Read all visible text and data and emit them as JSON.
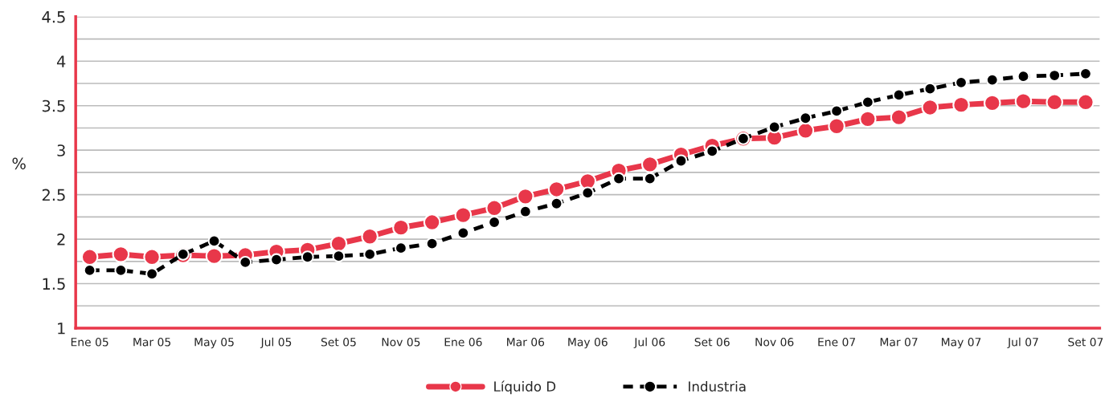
{
  "chart_data": {
    "type": "line",
    "ylabel": "%",
    "categories": [
      "Ene 05",
      null,
      "Mar 05",
      null,
      "May 05",
      null,
      "Jul 05",
      null,
      "Set 05",
      null,
      "Nov 05",
      null,
      "Ene 06",
      null,
      "Mar 06",
      null,
      "May 06",
      null,
      "Jul 06",
      null,
      "Set 06",
      null,
      "Nov 06",
      null,
      "Ene 07",
      null,
      "Mar 07",
      null,
      "May 07",
      null,
      "Jul 07",
      null,
      "Set 07"
    ],
    "series": [
      {
        "name": "Líquido D",
        "color": "#e8374a",
        "line_style": "solid",
        "values": [
          1.8,
          1.83,
          1.8,
          1.82,
          1.81,
          1.82,
          1.86,
          1.88,
          1.95,
          2.03,
          2.13,
          2.19,
          2.27,
          2.35,
          2.48,
          2.56,
          2.65,
          2.77,
          2.84,
          2.95,
          3.05,
          3.13,
          3.14,
          3.22,
          3.27,
          3.35,
          3.37,
          3.48,
          3.51,
          3.53,
          3.55,
          3.54,
          3.54
        ]
      },
      {
        "name": "Industria",
        "color": "#000000",
        "line_style": "dashed",
        "values": [
          1.65,
          1.65,
          1.61,
          1.83,
          1.98,
          1.74,
          1.77,
          1.8,
          1.81,
          1.83,
          1.9,
          1.95,
          2.07,
          2.19,
          2.31,
          2.4,
          2.52,
          2.68,
          2.68,
          2.88,
          2.99,
          3.13,
          3.26,
          3.36,
          3.44,
          3.54,
          3.62,
          3.69,
          3.76,
          3.79,
          3.83,
          3.84,
          3.86
        ]
      }
    ],
    "ylim": [
      1,
      4.5
    ],
    "yticks": [
      1,
      {
        "value": 1.25,
        "label": null
      },
      1.5,
      {
        "value": 1.75,
        "label": null
      },
      2,
      {
        "value": 2.25,
        "label": null
      },
      2.5,
      {
        "value": 2.75,
        "label": null
      },
      3,
      {
        "value": 3.25,
        "label": null
      },
      3.5,
      {
        "value": 3.75,
        "label": null
      },
      4,
      {
        "value": 4.25,
        "label": null
      },
      4.5
    ],
    "grid": "y",
    "marker": "circle",
    "legend": "bottom"
  }
}
